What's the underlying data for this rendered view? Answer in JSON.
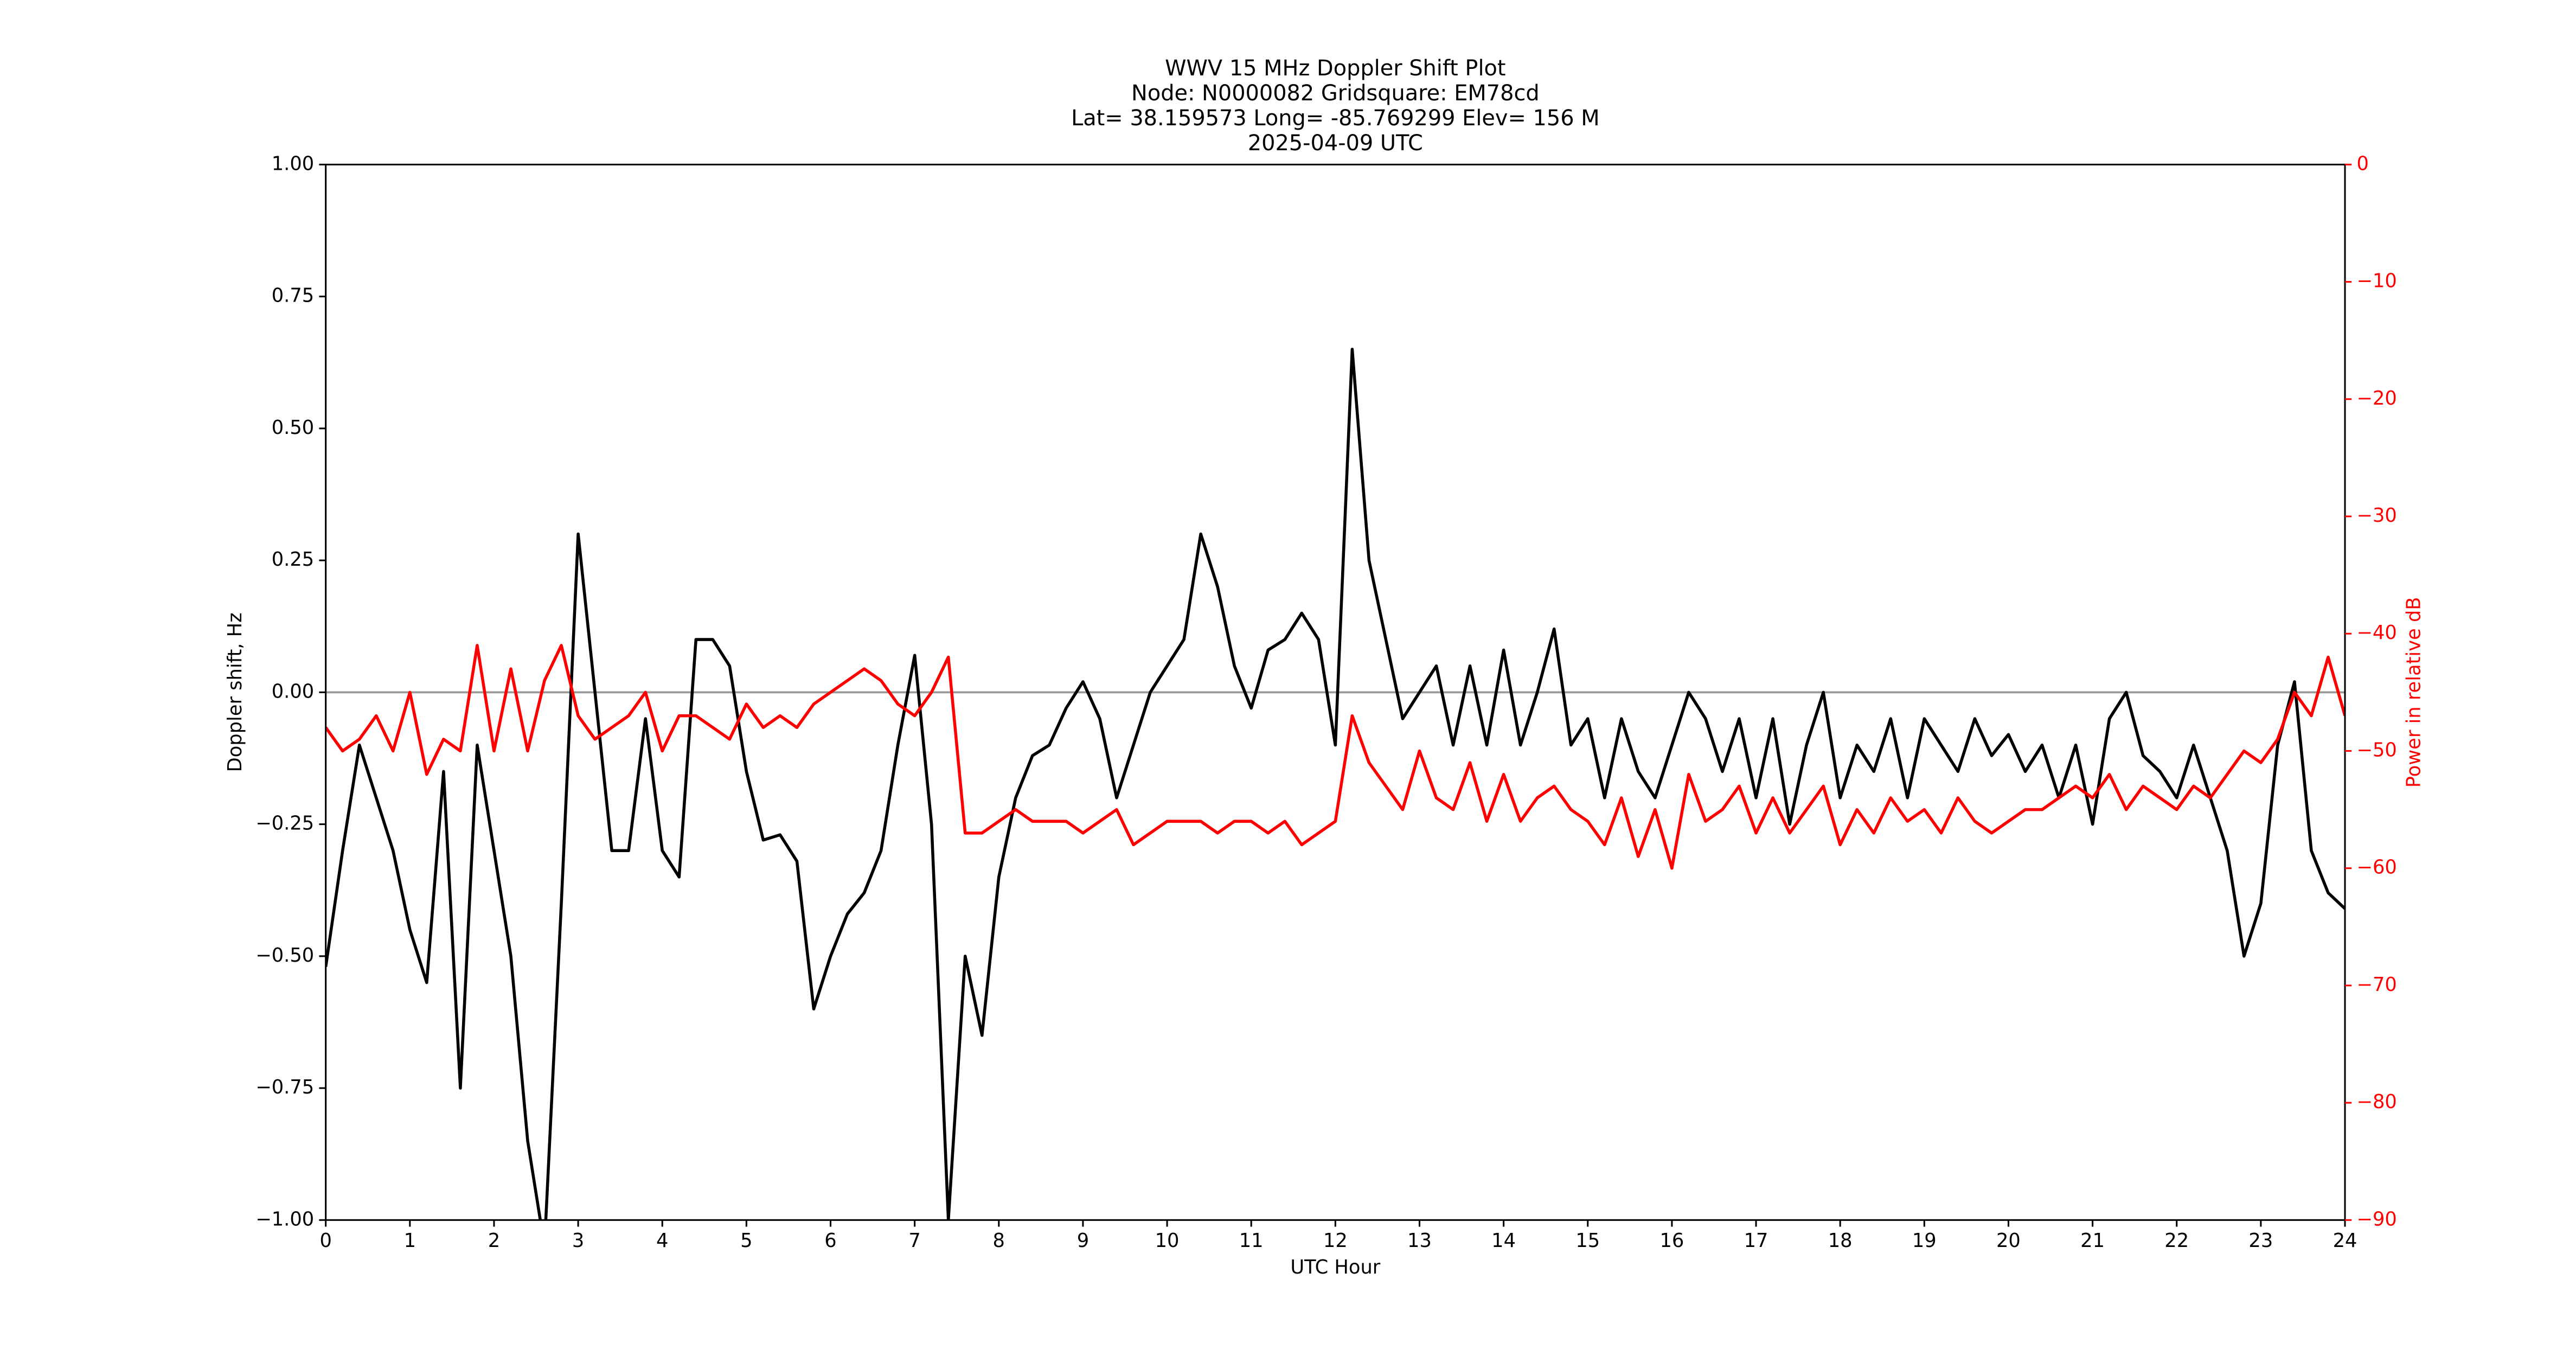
{
  "chart_data": {
    "type": "line",
    "title": [
      "WWV 15 MHz Doppler Shift Plot",
      "Node:  N0000082     Gridsquare:  EM78cd",
      "Lat= 38.159573    Long= -85.769299    Elev= 156 M",
      "2025-04-09  UTC"
    ],
    "xlabel": "UTC Hour",
    "ylabel": "Doppler shift, Hz",
    "y2label": "Power in relative dB",
    "x": [
      0,
      0.2,
      0.4,
      0.6,
      0.8,
      1,
      1.2,
      1.4,
      1.6,
      1.8,
      2,
      2.2,
      2.4,
      2.6,
      2.8,
      3,
      3.2,
      3.4,
      3.6,
      3.8,
      4,
      4.2,
      4.4,
      4.6,
      4.8,
      5,
      5.2,
      5.4,
      5.6,
      5.8,
      6,
      6.2,
      6.4,
      6.6,
      6.8,
      7,
      7.2,
      7.4,
      7.6,
      7.8,
      8,
      8.2,
      8.4,
      8.6,
      8.8,
      9,
      9.2,
      9.4,
      9.6,
      9.8,
      10,
      10.2,
      10.4,
      10.6,
      10.8,
      11,
      11.2,
      11.4,
      11.6,
      11.8,
      12,
      12.2,
      12.4,
      12.6,
      12.8,
      13,
      13.2,
      13.4,
      13.6,
      13.8,
      14,
      14.2,
      14.4,
      14.6,
      14.8,
      15,
      15.2,
      15.4,
      15.6,
      15.8,
      16,
      16.2,
      16.4,
      16.6,
      16.8,
      17,
      17.2,
      17.4,
      17.6,
      17.8,
      18,
      18.2,
      18.4,
      18.6,
      18.8,
      19,
      19.2,
      19.4,
      19.6,
      19.8,
      20,
      20.2,
      20.4,
      20.6,
      20.8,
      21,
      21.2,
      21.4,
      21.6,
      21.8,
      22,
      22.2,
      22.4,
      22.6,
      22.8,
      23,
      23.2,
      23.4,
      23.6,
      23.8,
      24
    ],
    "series": [
      {
        "name": "Doppler shift",
        "color": "#000000",
        "axis": "y",
        "values": [
          -0.52,
          -0.3,
          -0.1,
          -0.2,
          -0.3,
          -0.45,
          -0.55,
          -0.15,
          -0.75,
          -0.1,
          -0.3,
          -0.5,
          -0.85,
          -1.05,
          -0.4,
          0.3,
          0.0,
          -0.3,
          -0.3,
          -0.05,
          -0.3,
          -0.35,
          0.1,
          0.1,
          0.05,
          -0.15,
          -0.28,
          -0.27,
          -0.32,
          -0.6,
          -0.5,
          -0.42,
          -0.38,
          -0.3,
          -0.1,
          0.07,
          -0.25,
          -1.0,
          -0.5,
          -0.65,
          -0.35,
          -0.2,
          -0.12,
          -0.1,
          -0.03,
          0.02,
          -0.05,
          -0.2,
          -0.1,
          0.0,
          0.05,
          0.1,
          0.3,
          0.2,
          0.05,
          -0.03,
          0.08,
          0.1,
          0.15,
          0.1,
          -0.1,
          0.65,
          0.25,
          0.1,
          -0.05,
          0.0,
          0.05,
          -0.1,
          0.05,
          -0.1,
          0.08,
          -0.1,
          0.0,
          0.12,
          -0.1,
          -0.05,
          -0.2,
          -0.05,
          -0.15,
          -0.2,
          -0.1,
          0.0,
          -0.05,
          -0.15,
          -0.05,
          -0.2,
          -0.05,
          -0.25,
          -0.1,
          0.0,
          -0.2,
          -0.1,
          -0.15,
          -0.05,
          -0.2,
          -0.05,
          -0.1,
          -0.15,
          -0.05,
          -0.12,
          -0.08,
          -0.15,
          -0.1,
          -0.2,
          -0.1,
          -0.25,
          -0.05,
          0.0,
          -0.12,
          -0.15,
          -0.2,
          -0.1,
          -0.2,
          -0.3,
          -0.5,
          -0.4,
          -0.1,
          0.02,
          -0.3,
          -0.38,
          -0.41
        ]
      },
      {
        "name": "Power",
        "color": "#ff0000",
        "axis": "y2",
        "values": [
          -48,
          -50,
          -49,
          -47,
          -50,
          -45,
          -52,
          -49,
          -50,
          -41,
          -50,
          -43,
          -50,
          -44,
          -41,
          -47,
          -49,
          -48,
          -47,
          -45,
          -50,
          -47,
          -47,
          -48,
          -49,
          -46,
          -48,
          -47,
          -48,
          -46,
          -45,
          -44,
          -43,
          -44,
          -46,
          -47,
          -45,
          -42,
          -57,
          -57,
          -56,
          -55,
          -56,
          -56,
          -56,
          -57,
          -56,
          -55,
          -58,
          -57,
          -56,
          -56,
          -56,
          -57,
          -56,
          -56,
          -57,
          -56,
          -58,
          -57,
          -56,
          -47,
          -51,
          -53,
          -55,
          -50,
          -54,
          -55,
          -51,
          -56,
          -52,
          -56,
          -54,
          -53,
          -55,
          -56,
          -58,
          -54,
          -59,
          -55,
          -60,
          -52,
          -56,
          -55,
          -53,
          -57,
          -54,
          -57,
          -55,
          -53,
          -58,
          -55,
          -57,
          -54,
          -56,
          -55,
          -57,
          -54,
          -56,
          -57,
          -56,
          -55,
          -55,
          -54,
          -53,
          -54,
          -52,
          -55,
          -53,
          -54,
          -55,
          -53,
          -54,
          -52,
          -50,
          -51,
          -49,
          -45,
          -47,
          -42,
          -47
        ]
      }
    ],
    "xlim": [
      0,
      24
    ],
    "xticks": [
      0,
      1,
      2,
      3,
      4,
      5,
      6,
      7,
      8,
      9,
      10,
      11,
      12,
      13,
      14,
      15,
      16,
      17,
      18,
      19,
      20,
      21,
      22,
      23,
      24
    ],
    "ylim": [
      -1,
      1
    ],
    "yticks": [
      {
        "value": -1,
        "label": "−1.00"
      },
      {
        "value": -0.75,
        "label": "−0.75"
      },
      {
        "value": -0.5,
        "label": "−0.50"
      },
      {
        "value": -0.25,
        "label": "−0.25"
      },
      {
        "value": 0,
        "label": "0.00"
      },
      {
        "value": 0.25,
        "label": "0.25"
      },
      {
        "value": 0.5,
        "label": "0.50"
      },
      {
        "value": 0.75,
        "label": "0.75"
      },
      {
        "value": 1,
        "label": "1.00"
      }
    ],
    "y2lim": [
      -90,
      0
    ],
    "y2ticks": [
      {
        "value": -90,
        "label": "−90"
      },
      {
        "value": -80,
        "label": "−80"
      },
      {
        "value": -70,
        "label": "−70"
      },
      {
        "value": -60,
        "label": "−60"
      },
      {
        "value": -50,
        "label": "−50"
      },
      {
        "value": -40,
        "label": "−40"
      },
      {
        "value": -30,
        "label": "−30"
      },
      {
        "value": -20,
        "label": "−20"
      },
      {
        "value": -10,
        "label": "−10"
      },
      0
    ],
    "reference_line": {
      "y": 0,
      "color": "#999999"
    },
    "y2_color": "#ff0000",
    "grid": false
  }
}
